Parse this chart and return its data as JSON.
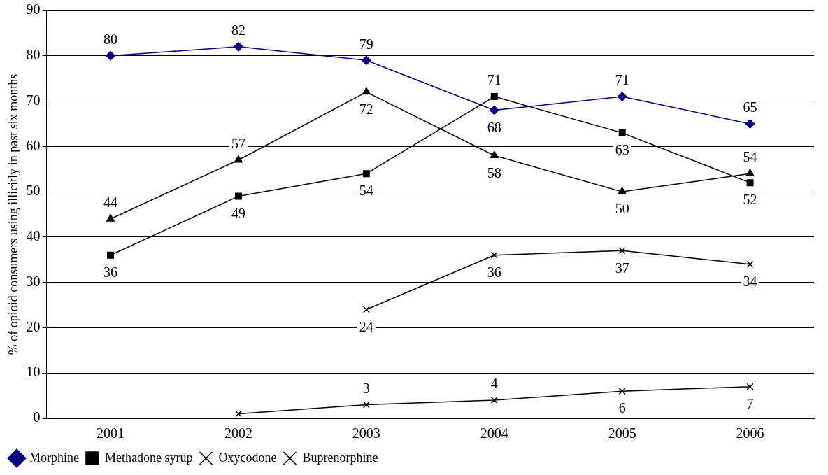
{
  "chart_data": {
    "type": "line",
    "ylabel": "% of opioid consumers using illicitly in past six months",
    "categories": [
      "2001",
      "2002",
      "2003",
      "2004",
      "2005",
      "2006"
    ],
    "ylim": [
      0,
      90
    ],
    "yticks": [
      0,
      10,
      20,
      30,
      40,
      50,
      60,
      70,
      80,
      90
    ],
    "grid": "y",
    "legend": "bottom left",
    "line_style": "solid",
    "series": [
      {
        "name": "Morphine",
        "color": "#000080",
        "marker": "diamond",
        "values": [
          80,
          82,
          79,
          68,
          71,
          65
        ],
        "value_labels": [
          "80",
          "82",
          "79",
          "68",
          "71",
          "65"
        ]
      },
      {
        "name": "Methadone syrup",
        "color": "#000000",
        "marker": "square",
        "values": [
          36,
          49,
          54,
          71,
          63,
          52
        ],
        "value_labels": [
          "36",
          "49",
          "54",
          "71",
          "63",
          "52"
        ]
      },
      {
        "color": "#000000",
        "marker": "triangle",
        "values": [
          44,
          57,
          72,
          58,
          50,
          54
        ],
        "value_labels": [
          "44",
          "57",
          "72",
          "58",
          "50",
          "54"
        ]
      },
      {
        "name": "Oxycodone",
        "color": "#000000",
        "marker": "cross",
        "values": [
          null,
          null,
          24,
          36,
          37,
          34
        ],
        "value_labels": [
          null,
          null,
          "24",
          "36",
          "37",
          "34"
        ]
      },
      {
        "name": "Buprenorphine",
        "color": "#000000",
        "marker": "cross",
        "values": [
          null,
          1,
          3,
          4,
          6,
          7
        ],
        "value_labels": [
          null,
          null,
          "3",
          "4",
          "6",
          "7"
        ]
      }
    ]
  }
}
